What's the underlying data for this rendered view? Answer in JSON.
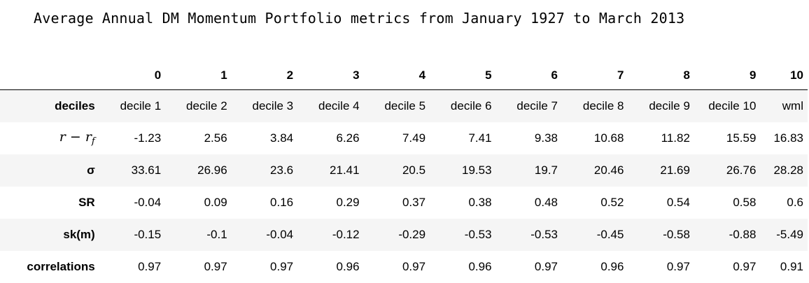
{
  "title": "Average Annual DM Momentum Portfolio metrics from January 1927 to March 2013",
  "table": {
    "columns": [
      "0",
      "1",
      "2",
      "3",
      "4",
      "5",
      "6",
      "7",
      "8",
      "9",
      "10"
    ],
    "rows": [
      {
        "label": "deciles",
        "cells": [
          "decile 1",
          "decile 2",
          "decile 3",
          "decile 4",
          "decile 5",
          "decile 6",
          "decile 7",
          "decile 8",
          "decile 9",
          "decile 10",
          "wml"
        ]
      },
      {
        "label": "r − r_f",
        "cells": [
          "-1.23",
          "2.56",
          "3.84",
          "6.26",
          "7.49",
          "7.41",
          "9.38",
          "10.68",
          "11.82",
          "15.59",
          "16.83"
        ]
      },
      {
        "label": "σ",
        "cells": [
          "33.61",
          "26.96",
          "23.6",
          "21.41",
          "20.5",
          "19.53",
          "19.7",
          "20.46",
          "21.69",
          "26.76",
          "28.28"
        ]
      },
      {
        "label": "SR",
        "cells": [
          "-0.04",
          "0.09",
          "0.16",
          "0.29",
          "0.37",
          "0.38",
          "0.48",
          "0.52",
          "0.54",
          "0.58",
          "0.6"
        ]
      },
      {
        "label": "sk(m)",
        "cells": [
          "-0.15",
          "-0.1",
          "-0.04",
          "-0.12",
          "-0.29",
          "-0.53",
          "-0.53",
          "-0.45",
          "-0.58",
          "-0.88",
          "-5.49"
        ]
      },
      {
        "label": "correlations",
        "cells": [
          "0.97",
          "0.97",
          "0.97",
          "0.96",
          "0.97",
          "0.96",
          "0.97",
          "0.96",
          "0.97",
          "0.97",
          "0.91"
        ]
      }
    ]
  }
}
